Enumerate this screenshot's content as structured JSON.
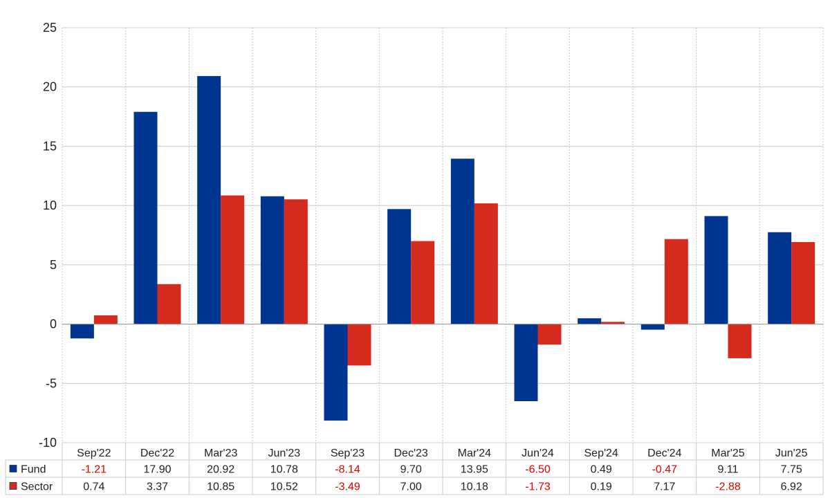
{
  "colors": {
    "fund": "#003591",
    "sector": "#d52b1e",
    "negative_text": "#e00000",
    "positive_text": "#222222",
    "grid": "#c8c8c8",
    "axis": "#999999"
  },
  "chart_data": {
    "type": "bar",
    "categories": [
      "Sep'22",
      "Dec'22",
      "Mar'23",
      "Jun'23",
      "Sep'23",
      "Dec'23",
      "Mar'24",
      "Jun'24",
      "Sep'24",
      "Dec'24",
      "Mar'25",
      "Jun'25"
    ],
    "series": [
      {
        "name": "Fund",
        "values": [
          -1.21,
          17.9,
          20.92,
          10.78,
          -8.14,
          9.7,
          13.95,
          -6.5,
          0.49,
          -0.47,
          9.11,
          7.75
        ],
        "labels": [
          "-1.21",
          "17.90",
          "20.92",
          "10.78",
          "-8.14",
          "9.70",
          "13.95",
          "-6.50",
          "0.49",
          "-0.47",
          "9.11",
          "7.75"
        ]
      },
      {
        "name": "Sector",
        "values": [
          0.74,
          3.37,
          10.85,
          10.52,
          -3.49,
          7.0,
          10.18,
          -1.73,
          0.19,
          7.17,
          -2.88,
          6.92
        ],
        "labels": [
          "0.74",
          "3.37",
          "10.85",
          "10.52",
          "-3.49",
          "7.00",
          "10.18",
          "-1.73",
          "0.19",
          "7.17",
          "-2.88",
          "6.92"
        ]
      }
    ],
    "y_ticks": [
      "25",
      "20",
      "15",
      "10",
      "5",
      "0",
      "-5",
      "-10"
    ],
    "ylim": [
      -10,
      25
    ],
    "grid": true,
    "legend": "data table below chart"
  }
}
